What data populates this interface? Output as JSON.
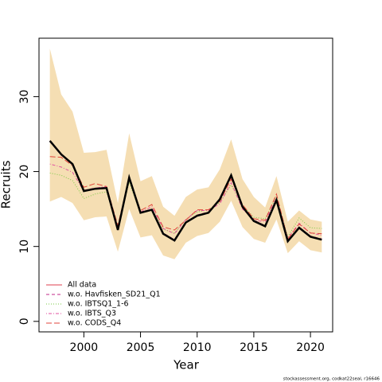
{
  "chart_data": {
    "type": "line",
    "xlabel": "Year",
    "ylabel": "Recruits",
    "footnote": "stockassessment.org, codkat22seal, r16646",
    "x": [
      1997,
      1998,
      1999,
      2000,
      2001,
      2002,
      2003,
      2004,
      2005,
      2006,
      2007,
      2008,
      2009,
      2010,
      2011,
      2012,
      2013,
      2014,
      2015,
      2016,
      2017,
      2018,
      2019,
      2020,
      2021
    ],
    "values": [
      24.1,
      22.3,
      21.0,
      17.4,
      17.7,
      17.8,
      12.2,
      19.2,
      14.5,
      14.9,
      11.7,
      10.8,
      13.2,
      14.1,
      14.5,
      16.3,
      19.5,
      15.3,
      13.4,
      12.7,
      16.2,
      10.7,
      12.5,
      11.3,
      10.9
    ],
    "color": "#000000",
    "upper": [
      36.4,
      30.3,
      28.0,
      22.5,
      22.6,
      22.9,
      15.8,
      25.1,
      18.7,
      19.4,
      15.3,
      14.1,
      16.6,
      17.6,
      17.9,
      20.3,
      24.3,
      19.0,
      16.6,
      15.2,
      19.4,
      13.3,
      14.8,
      13.6,
      13.3
    ],
    "lower": [
      16.0,
      16.6,
      15.8,
      13.5,
      13.9,
      14.0,
      9.3,
      15.0,
      11.2,
      11.5,
      8.8,
      8.3,
      10.5,
      11.4,
      11.8,
      13.3,
      16.1,
      12.6,
      11.0,
      10.5,
      13.6,
      9.1,
      10.7,
      9.5,
      9.2
    ],
    "band_color": "#f5deb3",
    "series": [
      {
        "name": "All data",
        "color": "#df3f4f",
        "dash": "solid",
        "values": [
          24.1,
          22.3,
          21.0,
          17.4,
          17.7,
          17.8,
          12.2,
          19.2,
          14.5,
          14.9,
          11.7,
          10.8,
          13.2,
          14.1,
          14.5,
          16.3,
          19.5,
          15.3,
          13.4,
          12.7,
          16.2,
          10.7,
          12.5,
          11.3,
          10.9
        ]
      },
      {
        "name": "w.o. Havfisken_SD21_Q1",
        "color": "#c2298a",
        "dash": "dashed",
        "values": [
          24.0,
          22.2,
          20.9,
          17.5,
          17.8,
          17.9,
          12.3,
          19.1,
          14.5,
          15.0,
          11.8,
          10.9,
          13.3,
          14.2,
          14.6,
          16.2,
          19.3,
          15.3,
          13.5,
          12.8,
          16.2,
          10.8,
          12.6,
          11.4,
          11.0
        ]
      },
      {
        "name": "w.o. IBTSQ1_1-6",
        "color": "#7ac943",
        "dash": "dotted",
        "values": [
          19.8,
          19.5,
          18.8,
          16.4,
          17.0,
          17.3,
          12.5,
          18.6,
          14.4,
          15.0,
          12.3,
          11.8,
          13.6,
          14.6,
          14.9,
          15.9,
          18.2,
          15.5,
          13.9,
          13.7,
          16.7,
          11.3,
          13.8,
          12.5,
          12.4
        ]
      },
      {
        "name": "w.o. IBTS_Q3",
        "color": "#e052a0",
        "dash": "dotdash",
        "values": [
          21.0,
          20.6,
          19.9,
          17.4,
          17.8,
          18.0,
          12.6,
          19.0,
          14.6,
          15.3,
          12.4,
          11.7,
          13.6,
          14.8,
          14.8,
          15.7,
          18.5,
          15.0,
          13.5,
          13.3,
          16.5,
          11.1,
          13.1,
          11.8,
          11.5
        ]
      },
      {
        "name": "w.o. CODS_Q4",
        "color": "#e0453c",
        "dash": "longdash",
        "values": [
          22.0,
          21.9,
          20.8,
          17.9,
          18.4,
          18.0,
          12.8,
          19.2,
          14.8,
          15.6,
          12.6,
          12.2,
          13.5,
          14.9,
          14.9,
          16.0,
          19.0,
          15.6,
          13.7,
          13.5,
          17.0,
          11.0,
          13.0,
          11.8,
          11.7
        ]
      }
    ],
    "xlim": [
      1996.04,
      2021.96
    ],
    "xticks": [
      2000,
      2005,
      2010,
      2015,
      2020
    ],
    "ylim": [
      -1.4,
      37.8
    ],
    "yticks": [
      0,
      10,
      20,
      30
    ],
    "legend": "bottom-left"
  }
}
